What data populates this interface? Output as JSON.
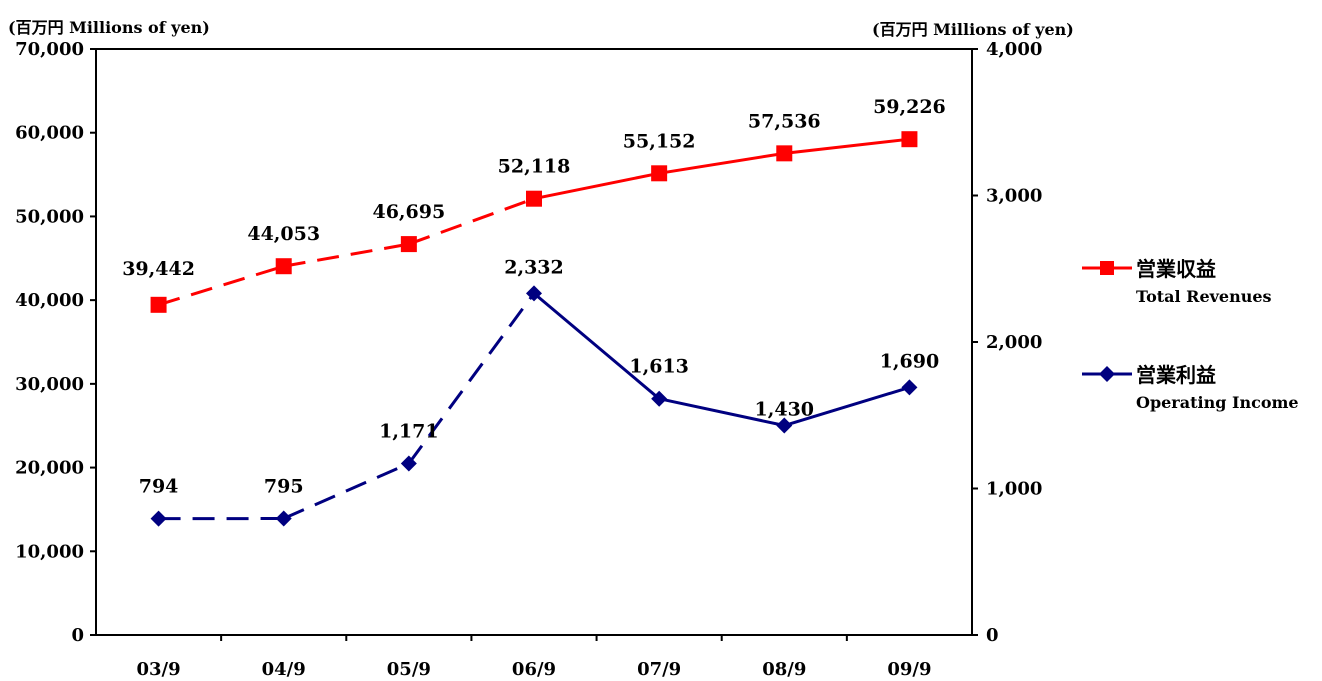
{
  "chart_data": {
    "type": "line",
    "categories": [
      "03/9",
      "04/9",
      "05/9",
      "06/9",
      "07/9",
      "08/9",
      "09/9"
    ],
    "left_axis": {
      "unit_label": "(百万円 Millions of yen)",
      "ylim": [
        0,
        70000
      ],
      "ticks": [
        "0",
        "10,000",
        "20,000",
        "30,000",
        "40,000",
        "50,000",
        "60,000",
        "70,000"
      ]
    },
    "right_axis": {
      "unit_label": "(百万円 Millions of yen)",
      "ylim": [
        0,
        4000
      ],
      "ticks": [
        "0",
        "1,000",
        "2,000",
        "3,000",
        "4,000"
      ]
    },
    "series": [
      {
        "name": "営業収益",
        "name_en": "Total Revenues",
        "axis": "left",
        "color": "#ff0000",
        "marker": "square",
        "values": [
          39442,
          44053,
          46695,
          52118,
          55152,
          57536,
          59226
        ],
        "labels": [
          "39,442",
          "44,053",
          "46,695",
          "52,118",
          "55,152",
          "57,536",
          "59,226"
        ],
        "dashed_until_index": 3
      },
      {
        "name": "営業利益",
        "name_en": "Operating Income",
        "axis": "right",
        "color": "#000080",
        "marker": "diamond",
        "values": [
          794,
          795,
          1171,
          2332,
          1613,
          1430,
          1690
        ],
        "labels": [
          "794",
          "795",
          "1,171",
          "2,332",
          "1,613",
          "1,430",
          "1,690"
        ],
        "dashed_until_index": 3
      }
    ],
    "legend_position": "right",
    "grid": false
  }
}
